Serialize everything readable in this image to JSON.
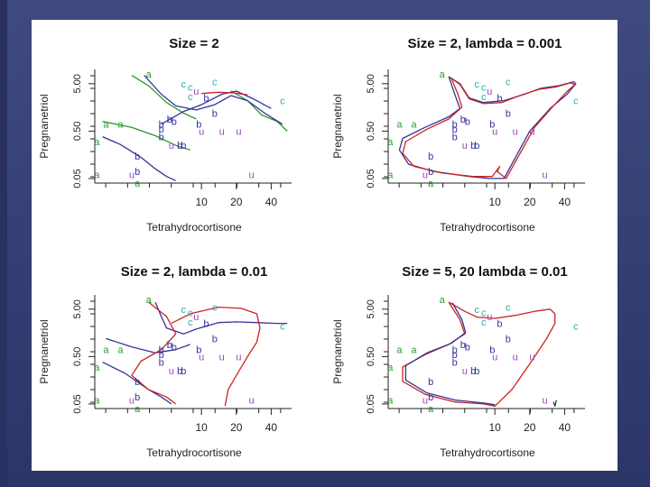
{
  "chart_data": [
    {
      "type": "scatter",
      "title": "Size = 2",
      "xlabel": "Tetrahydrocortisone",
      "ylabel": "Pregnanetriol",
      "x_scale": "log",
      "y_scale": "log",
      "xlim": [
        1.2,
        60
      ],
      "ylim": [
        0.04,
        10
      ],
      "x_ticks": [
        {
          "value": 10,
          "label": "10"
        },
        {
          "value": 20,
          "label": "20"
        },
        {
          "value": 40,
          "label": "40"
        }
      ],
      "y_ticks": [
        {
          "value": 0.05,
          "label": "0.05"
        },
        {
          "value": 0.5,
          "label": "0.50"
        },
        {
          "value": 5,
          "label": "5.00"
        }
      ],
      "lines": [
        {
          "color": "#333399",
          "points": [
            [
              1.4,
              0.38
            ],
            [
              2,
              0.26
            ],
            [
              3,
              0.14
            ],
            [
              4,
              0.08
            ],
            [
              5,
              0.055
            ],
            [
              6,
              0.045
            ]
          ]
        },
        {
          "color": "#2a9a2a",
          "points": [
            [
              2.5,
              7.5
            ],
            [
              3.5,
              4.5
            ],
            [
              5,
              2
            ],
            [
              7,
              1.2
            ],
            [
              9,
              0.9
            ]
          ]
        },
        {
          "color": "#2a9a2a",
          "points": [
            [
              1.4,
              0.8
            ],
            [
              2.5,
              0.6
            ],
            [
              4,
              0.4
            ],
            [
              6,
              0.25
            ],
            [
              8,
              0.2
            ]
          ]
        },
        {
          "color": "#2a9a2a",
          "points": [
            [
              18,
              3.5
            ],
            [
              25,
              2.2
            ],
            [
              33,
              1.1
            ],
            [
              45,
              0.8
            ],
            [
              55,
              0.5
            ]
          ]
        },
        {
          "color": "#333399",
          "points": [
            [
              3.2,
              7.5
            ],
            [
              4.5,
              3
            ],
            [
              6,
              1.7
            ],
            [
              9,
              1.4
            ],
            [
              13,
              1.8
            ],
            [
              18,
              2.8
            ],
            [
              25,
              2.2
            ],
            [
              35,
              1.2
            ],
            [
              50,
              0.7
            ]
          ]
        },
        {
          "color": "#333399",
          "points": [
            [
              4.5,
              0.7
            ],
            [
              7,
              1.3
            ],
            [
              10,
              1.8
            ],
            [
              15,
              3
            ],
            [
              20,
              3.5
            ],
            [
              28,
              2.4
            ],
            [
              40,
              1.5
            ]
          ]
        },
        {
          "color": "#cc2222",
          "points": [
            [
              10,
              3.1
            ],
            [
              14,
              3.3
            ],
            [
              19,
              3.2
            ],
            [
              25,
              2.9
            ]
          ]
        }
      ]
    },
    {
      "type": "scatter",
      "title": "Size = 2, lambda = 0.001",
      "xlabel": "Tetrahydrocortisone",
      "ylabel": "Pregnanetriol",
      "x_scale": "log",
      "y_scale": "log",
      "xlim": [
        1.2,
        60
      ],
      "ylim": [
        0.04,
        10
      ],
      "x_ticks": [
        {
          "value": 10,
          "label": "10"
        },
        {
          "value": 20,
          "label": "20"
        },
        {
          "value": 40,
          "label": "40"
        }
      ],
      "y_ticks": [
        {
          "value": 0.05,
          "label": "0.05"
        },
        {
          "value": 0.5,
          "label": "0.50"
        },
        {
          "value": 5,
          "label": "5.00"
        }
      ],
      "lines": [
        {
          "color": "#333399",
          "points": [
            [
              4,
              7
            ],
            [
              4.5,
              3
            ],
            [
              5,
              1.5
            ],
            [
              4,
              1
            ],
            [
              2.5,
              0.6
            ],
            [
              1.6,
              0.35
            ],
            [
              1.5,
              0.2
            ],
            [
              1.8,
              0.1
            ],
            [
              3,
              0.07
            ],
            [
              6,
              0.055
            ],
            [
              9,
              0.05
            ],
            [
              12,
              0.05
            ],
            [
              20,
              0.5
            ],
            [
              30,
              1.5
            ],
            [
              42,
              3
            ],
            [
              50,
              5
            ],
            [
              48,
              5.5
            ],
            [
              35,
              4.5
            ],
            [
              25,
              4
            ],
            [
              18,
              3
            ],
            [
              12,
              2.2
            ],
            [
              8,
              2
            ],
            [
              6,
              2.5
            ],
            [
              5,
              5
            ],
            [
              4,
              7
            ]
          ]
        },
        {
          "color": "#cc2222",
          "points": [
            [
              4.2,
              6.5
            ],
            [
              4.8,
              3
            ],
            [
              5.2,
              1.6
            ],
            [
              4,
              0.9
            ],
            [
              2.6,
              0.55
            ],
            [
              1.7,
              0.3
            ],
            [
              1.6,
              0.17
            ],
            [
              2,
              0.09
            ],
            [
              3.5,
              0.065
            ],
            [
              6.5,
              0.055
            ],
            [
              9.5,
              0.055
            ],
            [
              11,
              0.09
            ],
            [
              10.5,
              0.07
            ],
            [
              12.5,
              0.05
            ],
            [
              22,
              0.6
            ],
            [
              32,
              1.7
            ],
            [
              42,
              3.4
            ],
            [
              49,
              4.8
            ],
            [
              45,
              5.2
            ],
            [
              34,
              4.3
            ],
            [
              24,
              3.8
            ],
            [
              17,
              2.9
            ],
            [
              11.5,
              2
            ],
            [
              8,
              1.9
            ],
            [
              6,
              2.4
            ],
            [
              5,
              4.8
            ],
            [
              4.2,
              6.5
            ]
          ]
        }
      ]
    },
    {
      "type": "scatter",
      "title": "Size = 2, lambda = 0.01",
      "xlabel": "Tetrahydrocortisone",
      "ylabel": "Pregnanetriol",
      "x_scale": "log",
      "y_scale": "log",
      "xlim": [
        1.2,
        60
      ],
      "ylim": [
        0.04,
        10
      ],
      "x_ticks": [
        {
          "value": 10,
          "label": "10"
        },
        {
          "value": 20,
          "label": "20"
        },
        {
          "value": 40,
          "label": "40"
        }
      ],
      "y_ticks": [
        {
          "value": 0.05,
          "label": "0.05"
        },
        {
          "value": 0.5,
          "label": "0.50"
        },
        {
          "value": 5,
          "label": "5.00"
        }
      ],
      "lines": [
        {
          "color": "#333399",
          "points": [
            [
              1.4,
              0.38
            ],
            [
              2.2,
              0.22
            ],
            [
              3.5,
              0.1
            ],
            [
              4.5,
              0.07
            ],
            [
              5.5,
              0.05
            ]
          ]
        },
        {
          "color": "#333399",
          "points": [
            [
              4,
              7
            ],
            [
              4.5,
              3.5
            ],
            [
              5,
              2
            ],
            [
              7,
              1.5
            ],
            [
              9,
              1.9
            ],
            [
              14,
              2.6
            ],
            [
              20,
              2.7
            ],
            [
              30,
              2.6
            ],
            [
              45,
              2.5
            ],
            [
              55,
              2.5
            ]
          ]
        },
        {
          "color": "#333399",
          "points": [
            [
              1.5,
              1.2
            ],
            [
              2.5,
              0.8
            ],
            [
              4,
              0.6
            ],
            [
              6,
              0.7
            ],
            [
              8,
              0.9
            ]
          ]
        },
        {
          "color": "#cc2222",
          "points": [
            [
              3.5,
              7
            ],
            [
              5,
              3.5
            ],
            [
              6,
              1.5
            ],
            [
              4.5,
              0.7
            ],
            [
              3,
              0.4
            ],
            [
              2.5,
              0.2
            ],
            [
              3.5,
              0.1
            ],
            [
              5,
              0.07
            ],
            [
              6,
              0.05
            ]
          ]
        },
        {
          "color": "#cc2222",
          "points": [
            [
              5.5,
              2.5
            ],
            [
              8,
              4
            ],
            [
              14,
              5.5
            ],
            [
              22,
              5.2
            ],
            [
              30,
              4
            ],
            [
              32,
              2
            ],
            [
              30,
              1
            ],
            [
              25,
              0.5
            ],
            [
              20,
              0.2
            ],
            [
              17,
              0.1
            ],
            [
              16,
              0.045
            ]
          ]
        }
      ]
    },
    {
      "type": "scatter",
      "title": "Size = 5, 20  lambda = 0.01",
      "xlabel": "Tetrahydrocortisone",
      "ylabel": "Pregnanetriol",
      "x_scale": "log",
      "y_scale": "log",
      "xlim": [
        1.2,
        60
      ],
      "ylim": [
        0.04,
        10
      ],
      "x_ticks": [
        {
          "value": 10,
          "label": "10"
        },
        {
          "value": 20,
          "label": "20"
        },
        {
          "value": 40,
          "label": "40"
        }
      ],
      "y_ticks": [
        {
          "value": 0.05,
          "label": "0.05"
        },
        {
          "value": 0.5,
          "label": "0.50"
        },
        {
          "value": 5,
          "label": "5.00"
        }
      ],
      "lines": [
        {
          "color": "#cc2222",
          "points": [
            [
              4,
              7
            ],
            [
              5,
              3
            ],
            [
              5.5,
              1.5
            ],
            [
              4,
              0.9
            ],
            [
              2.5,
              0.55
            ],
            [
              1.6,
              0.3
            ],
            [
              1.6,
              0.15
            ],
            [
              2.5,
              0.08
            ],
            [
              4.5,
              0.055
            ],
            [
              8,
              0.05
            ],
            [
              10,
              0.045
            ],
            [
              14,
              0.1
            ],
            [
              20,
              0.35
            ],
            [
              28,
              1.2
            ],
            [
              33,
              2.5
            ],
            [
              33,
              4
            ],
            [
              30,
              5
            ],
            [
              22,
              4.5
            ],
            [
              15,
              3.7
            ],
            [
              10,
              3.2
            ],
            [
              7,
              3.4
            ],
            [
              5.5,
              4.5
            ],
            [
              4,
              7
            ]
          ]
        },
        {
          "color": "#333399",
          "points": [
            [
              4.3,
              6.8
            ],
            [
              5.2,
              3
            ],
            [
              5.6,
              1.6
            ],
            [
              4.2,
              0.95
            ],
            [
              2.6,
              0.6
            ],
            [
              1.7,
              0.32
            ],
            [
              1.7,
              0.16
            ],
            [
              2.6,
              0.085
            ],
            [
              4.6,
              0.06
            ],
            [
              8.2,
              0.052
            ],
            [
              10,
              0.048
            ]
          ]
        },
        {
          "color": "#333333",
          "points": [
            [
              32,
              0.055
            ],
            [
              33,
              0.045
            ],
            [
              34,
              0.06
            ]
          ]
        }
      ]
    }
  ],
  "points": [
    {
      "label": "a",
      "x": 3.5,
      "y": 8
    },
    {
      "label": "a",
      "x": 1.5,
      "y": 0.7
    },
    {
      "label": "a",
      "x": 2.0,
      "y": 0.7
    },
    {
      "label": "a",
      "x": 1.25,
      "y": 0.3
    },
    {
      "label": "a",
      "x": 1.25,
      "y": 0.06
    },
    {
      "label": "a",
      "x": 2.8,
      "y": 0.04
    },
    {
      "label": "b",
      "x": 4.5,
      "y": 0.7
    },
    {
      "label": "b",
      "x": 4.5,
      "y": 0.55
    },
    {
      "label": "b",
      "x": 5.8,
      "y": 0.8
    },
    {
      "label": "b",
      "x": 5.3,
      "y": 0.9
    },
    {
      "label": "b",
      "x": 4.5,
      "y": 0.38
    },
    {
      "label": "b",
      "x": 6.5,
      "y": 0.25
    },
    {
      "label": "b",
      "x": 7.0,
      "y": 0.25
    },
    {
      "label": "b",
      "x": 2.8,
      "y": 0.15
    },
    {
      "label": "b",
      "x": 2.8,
      "y": 0.07
    },
    {
      "label": "b",
      "x": 9.5,
      "y": 0.7
    },
    {
      "label": "b",
      "x": 11,
      "y": 2.5
    },
    {
      "label": "b",
      "x": 13,
      "y": 1.2
    },
    {
      "label": "u",
      "x": 5.5,
      "y": 0.25
    },
    {
      "label": "u",
      "x": 10,
      "y": 0.5
    },
    {
      "label": "u",
      "x": 15,
      "y": 0.5
    },
    {
      "label": "u",
      "x": 21,
      "y": 0.5
    },
    {
      "label": "u",
      "x": 9,
      "y": 3.5
    },
    {
      "label": "u",
      "x": 2.5,
      "y": 0.06
    },
    {
      "label": "u",
      "x": 27,
      "y": 0.06
    },
    {
      "label": "c",
      "x": 7,
      "y": 5
    },
    {
      "label": "c",
      "x": 8,
      "y": 4.3
    },
    {
      "label": "c",
      "x": 13,
      "y": 5.5
    },
    {
      "label": "c",
      "x": 8,
      "y": 2.7
    },
    {
      "label": "c",
      "x": 50,
      "y": 2.2
    }
  ],
  "point_colors": {
    "a": "#2a9a2a",
    "b": "#333399",
    "u": "#a040c0",
    "c": "#20b0b0"
  }
}
